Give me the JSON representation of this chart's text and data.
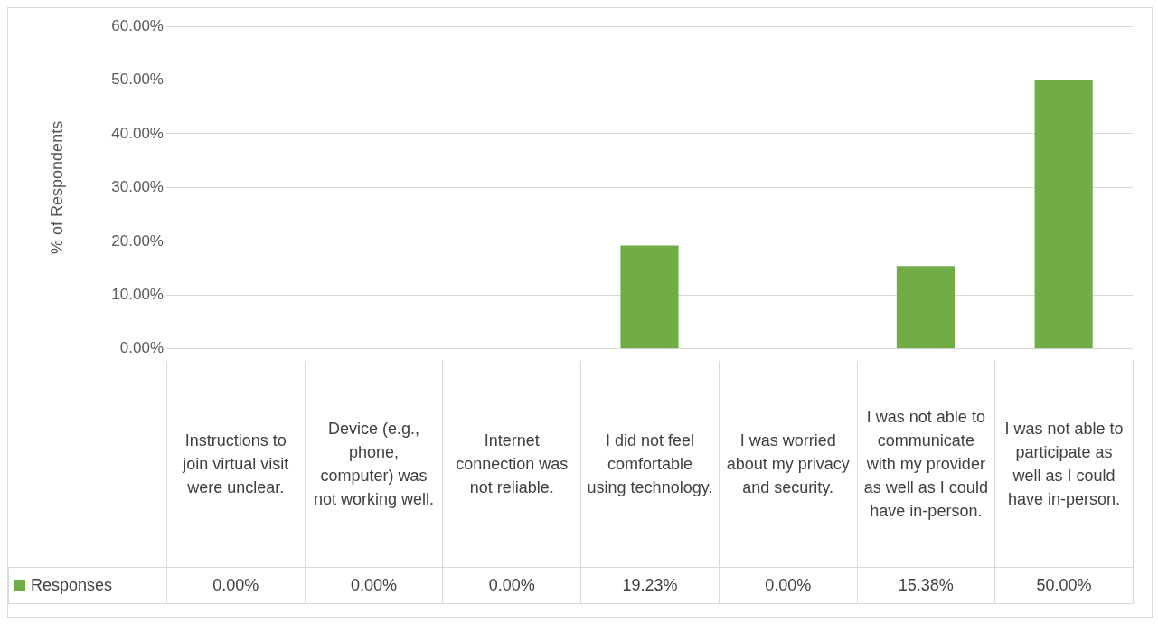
{
  "chart_data": {
    "type": "bar",
    "ylabel": "% of Respondents",
    "categories": [
      "Instructions to join virtual visit were unclear.",
      "Device (e.g., phone, computer) was not working well.",
      "Internet connection was not reliable.",
      "I did not feel comfortable using technology.",
      "I was worried about my privacy and security.",
      "I was not able to communicate with my provider as well as I could have in-person.",
      "I was not able to participate as well as I could have in-person."
    ],
    "series": [
      {
        "name": "Responses",
        "color": "#70ad47",
        "values": [
          0,
          0,
          0,
          19.23,
          0,
          15.38,
          50
        ],
        "value_labels": [
          "0.00%",
          "0.00%",
          "0.00%",
          "19.23%",
          "0.00%",
          "15.38%",
          "50.00%"
        ]
      }
    ],
    "ylim": [
      0,
      60
    ],
    "yticks": [
      {
        "value": 0,
        "label": "0.00%"
      },
      {
        "value": 10,
        "label": "10.00%"
      },
      {
        "value": 20,
        "label": "20.00%"
      },
      {
        "value": 30,
        "label": "30.00%"
      },
      {
        "value": 40,
        "label": "40.00%"
      },
      {
        "value": 50,
        "label": "50.00%"
      },
      {
        "value": 60,
        "label": "60.00%"
      }
    ],
    "grid": "y",
    "legend": "bottom"
  }
}
